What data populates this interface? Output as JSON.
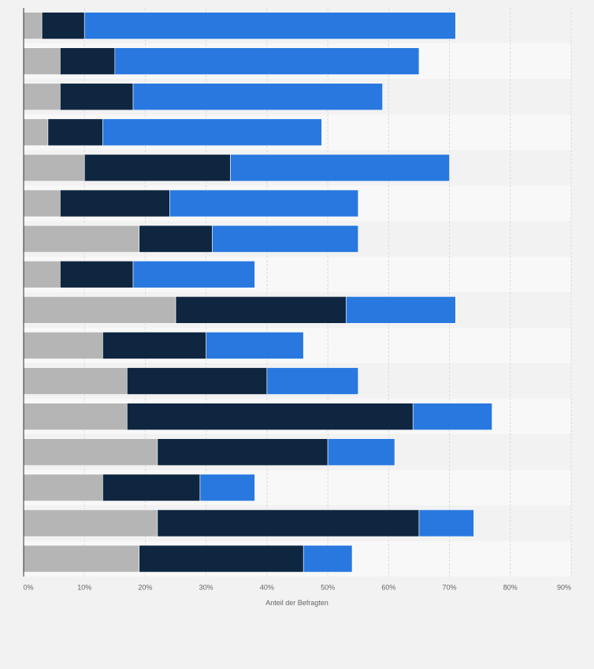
{
  "chart_data": {
    "type": "bar",
    "orientation": "horizontal",
    "stacked": true,
    "xlabel": "Anteil der Befragten",
    "xlim": [
      0,
      90
    ],
    "x_ticks": [
      "0%",
      "10%",
      "20%",
      "30%",
      "40%",
      "50%",
      "60%",
      "70%",
      "80%",
      "90%"
    ],
    "grid": true,
    "row_count": 16,
    "series": [
      {
        "color": "#b5b5b5",
        "values": [
          3,
          6,
          6,
          4,
          10,
          6,
          19,
          6,
          25,
          13,
          17,
          17,
          22,
          13,
          22,
          19
        ]
      },
      {
        "color": "#0f2640",
        "values": [
          7,
          9,
          12,
          9,
          24,
          18,
          12,
          12,
          28,
          17,
          23,
          47,
          28,
          16,
          43,
          27
        ]
      },
      {
        "color": "#2878df",
        "values": [
          61,
          50,
          41,
          36,
          36,
          31,
          24,
          20,
          18,
          16,
          15,
          13,
          11,
          9,
          9,
          8
        ]
      }
    ]
  }
}
